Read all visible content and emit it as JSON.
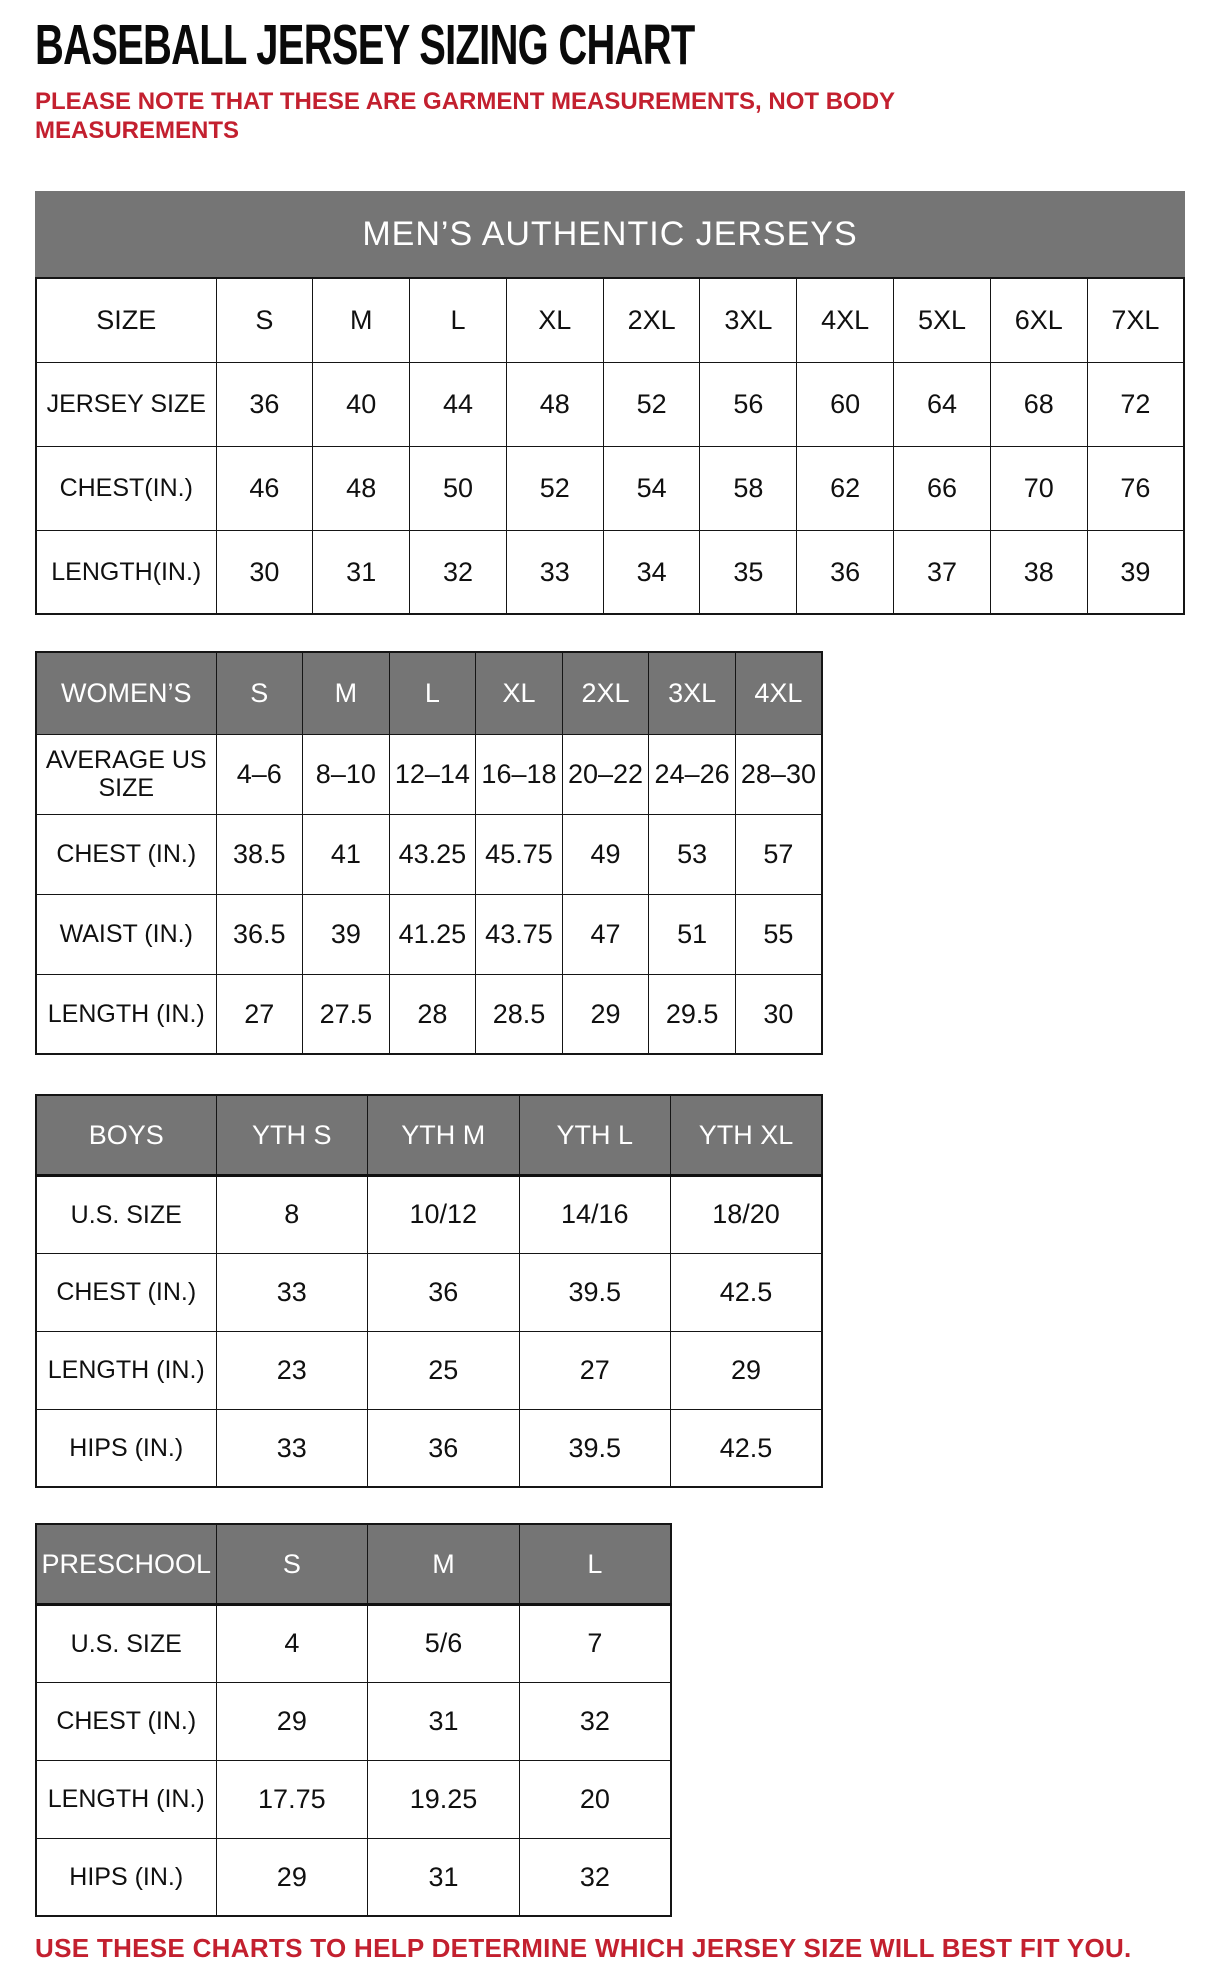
{
  "page": {
    "title": "BASEBALL JERSEY SIZING CHART",
    "note": "PLEASE NOTE THAT THESE ARE GARMENT MEASUREMENTS, NOT BODY MEASUREMENTS",
    "footer": "USE THESE CHARTS TO HELP DETERMINE WHICH JERSEY SIZE WILL BEST FIT YOU.",
    "colors": {
      "accent_red": "#c3202f",
      "header_gray": "#757575",
      "border_black": "#151515"
    }
  },
  "tables": {
    "mens": {
      "banner": "MEN’S AUTHENTIC JERSEYS",
      "rows": [
        {
          "label": "SIZE",
          "values": [
            "S",
            "M",
            "L",
            "XL",
            "2XL",
            "3XL",
            "4XL",
            "5XL",
            "6XL",
            "7XL"
          ]
        },
        {
          "label": "JERSEY SIZE",
          "values": [
            "36",
            "40",
            "44",
            "48",
            "52",
            "56",
            "60",
            "64",
            "68",
            "72"
          ]
        },
        {
          "label": "CHEST(IN.)",
          "values": [
            "46",
            "48",
            "50",
            "52",
            "54",
            "58",
            "62",
            "66",
            "70",
            "76"
          ]
        },
        {
          "label": "LENGTH(IN.)",
          "values": [
            "30",
            "31",
            "32",
            "33",
            "34",
            "35",
            "36",
            "37",
            "38",
            "39"
          ]
        }
      ]
    },
    "womens": {
      "header": {
        "label": "WOMEN’S",
        "values": [
          "S",
          "M",
          "L",
          "XL",
          "2XL",
          "3XL",
          "4XL"
        ]
      },
      "rows": [
        {
          "label": "AVERAGE US SIZE",
          "values": [
            "4–6",
            "8–10",
            "12–14",
            "16–18",
            "20–22",
            "24–26",
            "28–30"
          ]
        },
        {
          "label": "CHEST (IN.)",
          "values": [
            "38.5",
            "41",
            "43.25",
            "45.75",
            "49",
            "53",
            "57"
          ]
        },
        {
          "label": "WAIST (IN.)",
          "values": [
            "36.5",
            "39",
            "41.25",
            "43.75",
            "47",
            "51",
            "55"
          ]
        },
        {
          "label": "LENGTH (IN.)",
          "values": [
            "27",
            "27.5",
            "28",
            "28.5",
            "29",
            "29.5",
            "30"
          ]
        }
      ]
    },
    "boys": {
      "header": {
        "label": "BOYS",
        "values": [
          "YTH S",
          "YTH M",
          "YTH L",
          "YTH XL"
        ]
      },
      "rows": [
        {
          "label": "U.S. SIZE",
          "values": [
            "8",
            "10/12",
            "14/16",
            "18/20"
          ]
        },
        {
          "label": "CHEST (IN.)",
          "values": [
            "33",
            "36",
            "39.5",
            "42.5"
          ]
        },
        {
          "label": "LENGTH (IN.)",
          "values": [
            "23",
            "25",
            "27",
            "29"
          ]
        },
        {
          "label": "HIPS (IN.)",
          "values": [
            "33",
            "36",
            "39.5",
            "42.5"
          ]
        }
      ]
    },
    "preschool": {
      "header": {
        "label": "PRESCHOOL",
        "values": [
          "S",
          "M",
          "L"
        ]
      },
      "rows": [
        {
          "label": "U.S. SIZE",
          "values": [
            "4",
            "5/6",
            "7"
          ]
        },
        {
          "label": "CHEST (IN.)",
          "values": [
            "29",
            "31",
            "32"
          ]
        },
        {
          "label": "LENGTH (IN.)",
          "values": [
            "17.75",
            "19.25",
            "20"
          ]
        },
        {
          "label": "HIPS (IN.)",
          "values": [
            "29",
            "31",
            "32"
          ]
        }
      ]
    }
  }
}
